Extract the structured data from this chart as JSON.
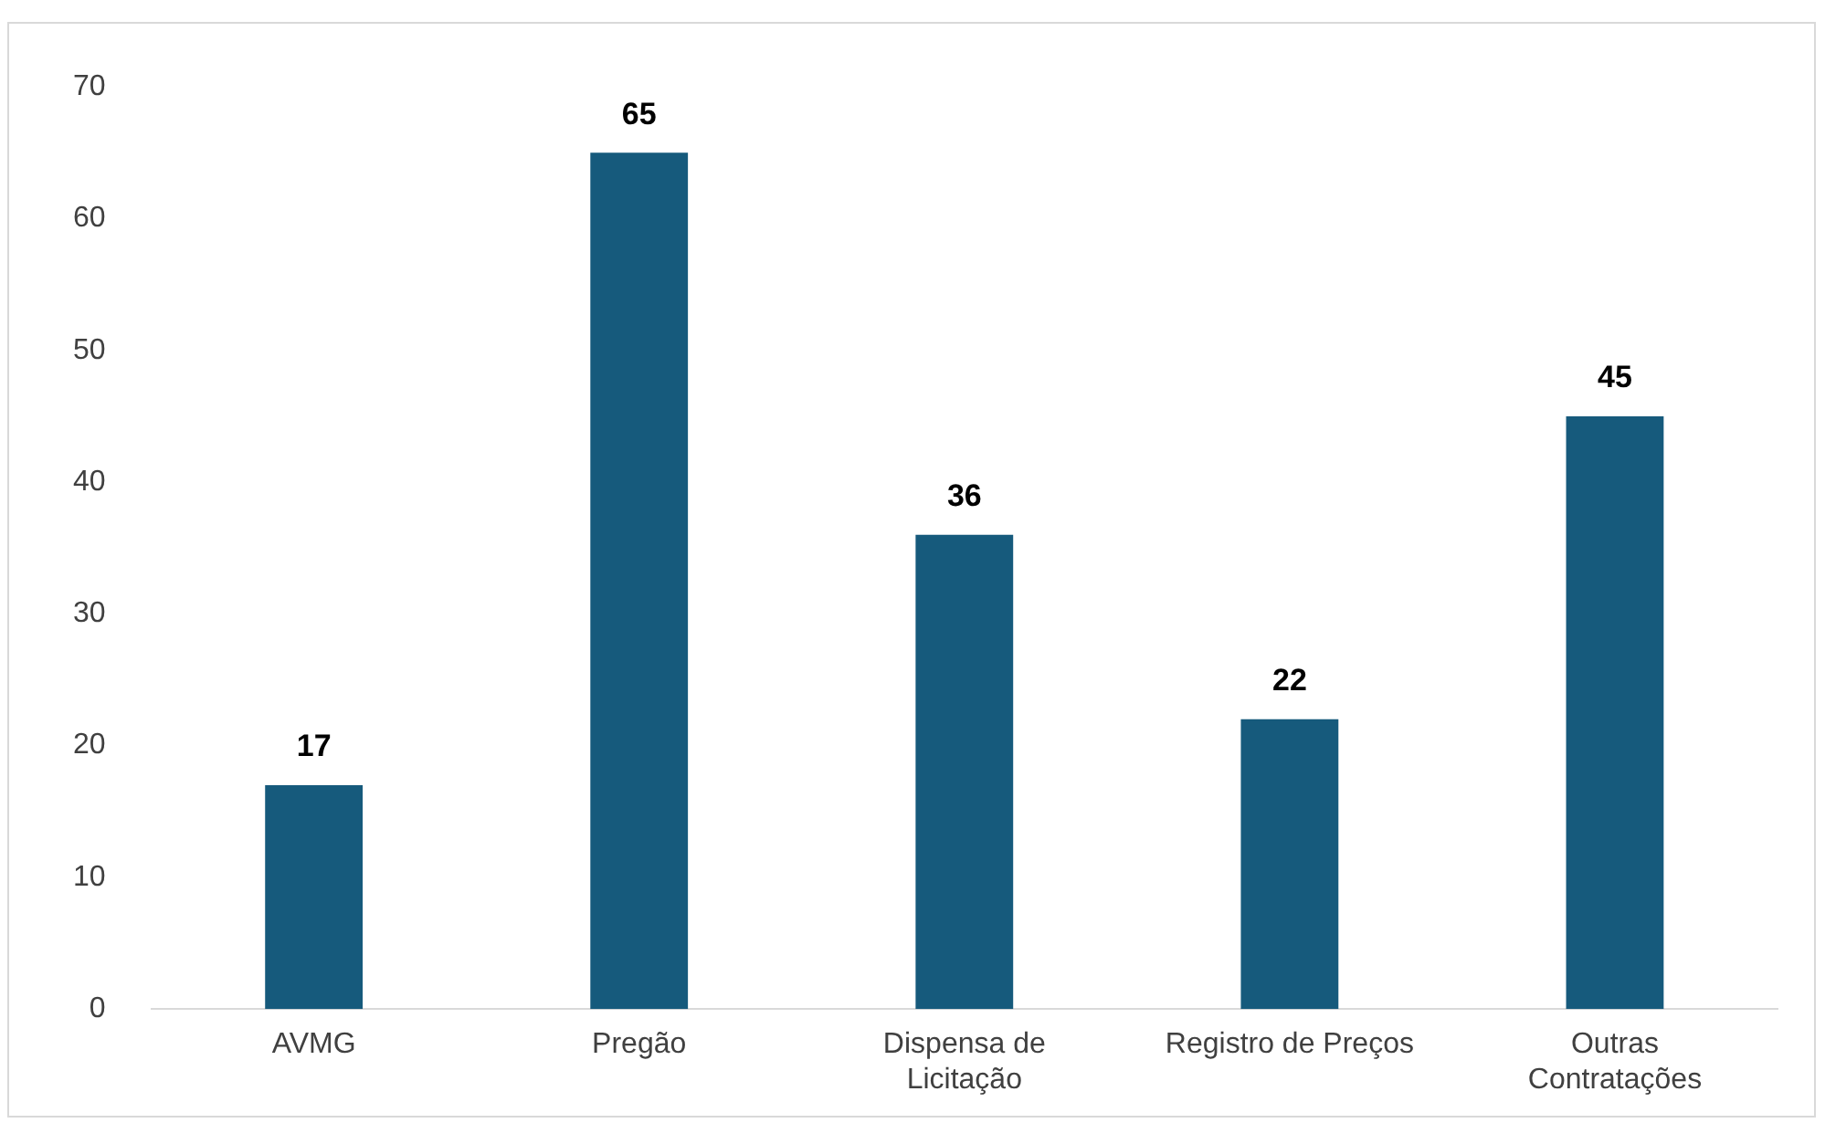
{
  "chart_data": {
    "type": "bar",
    "categories": [
      "AVMG",
      "Pregão",
      "Dispensa de Licitação",
      "Registro de Preços",
      "Outras Contratações"
    ],
    "values": [
      17,
      65,
      36,
      22,
      45
    ],
    "color": "#165a7c",
    "ylim": [
      0,
      70
    ],
    "yticks": [
      0,
      10,
      20,
      30,
      40,
      50,
      60,
      70
    ],
    "grid": false,
    "legend": false,
    "data_labels": true
  }
}
